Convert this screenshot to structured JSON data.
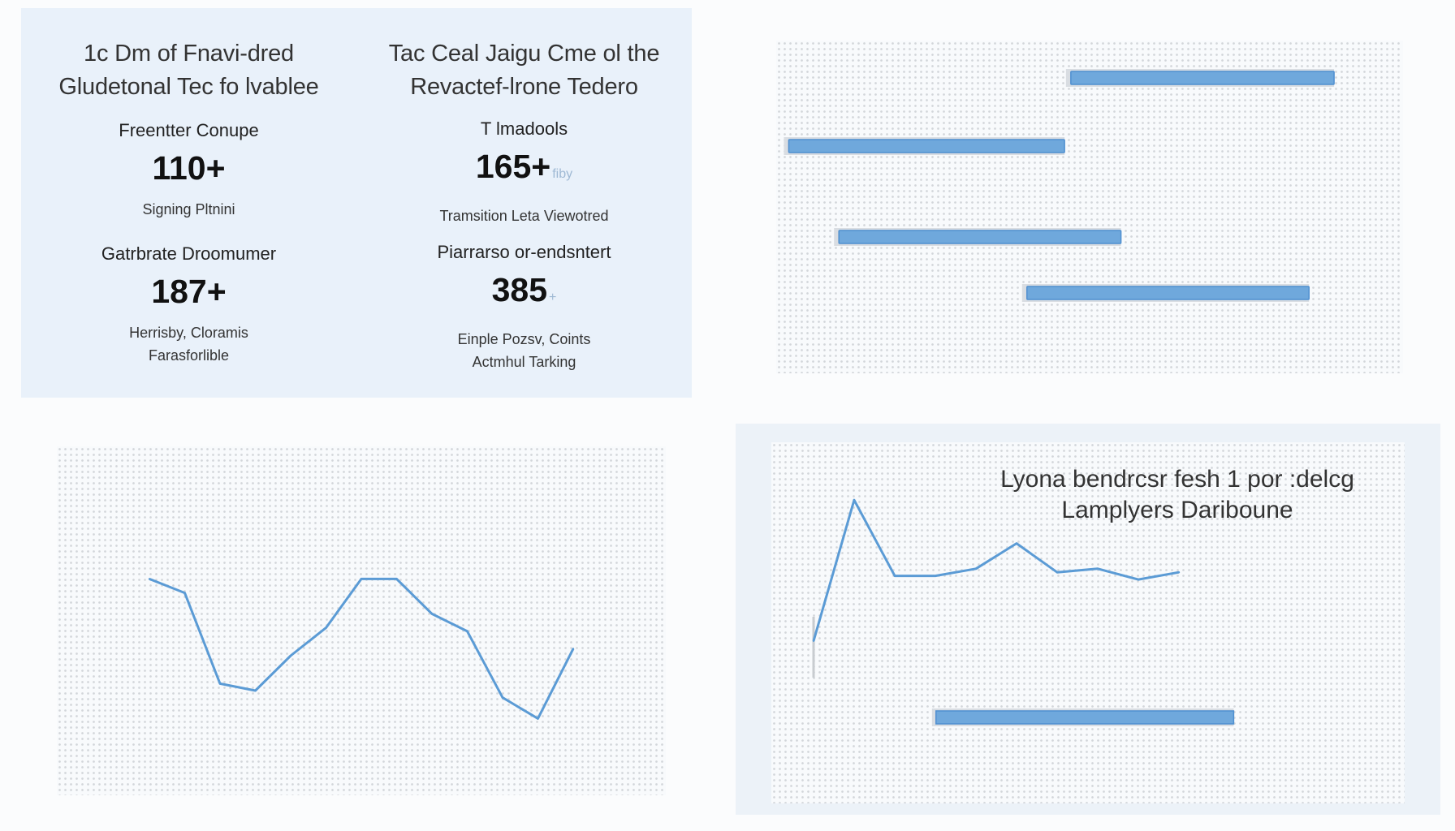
{
  "stats_panel": {
    "titles": [
      [
        "1c Dm of Fnavi-dred",
        "Gludetonal Tec fo lvablee"
      ],
      [
        "Tac Ceal Jaigu Cme ol the",
        "Revactef-lrone Tedero"
      ]
    ],
    "stats": [
      {
        "label": "Freentter Conupe",
        "value": "110+",
        "suffix": "",
        "desc": [
          "Signing Pltnini"
        ]
      },
      {
        "label": "T lmadools",
        "value": "165+",
        "suffix": "fiby",
        "desc": [
          "Tramsition Leta Viewotred"
        ]
      },
      {
        "label": "Gatrbrate Droomumer",
        "value": "187+",
        "suffix": "",
        "desc": [
          "Herrisby, Cloramis",
          "Farasforlible"
        ]
      },
      {
        "label": "Piarrarso or-endsntert",
        "value": "385",
        "suffix": "+",
        "desc": [
          "Einple Pozsv, Coints",
          "Actmhul Tarking"
        ]
      }
    ]
  },
  "chart_data": [
    {
      "type": "bar",
      "orientation": "horizontal-range",
      "bars": [
        {
          "start": 0.47,
          "end": 0.89
        },
        {
          "start": 0.02,
          "end": 0.46
        },
        {
          "start": 0.1,
          "end": 0.55
        },
        {
          "start": 0.4,
          "end": 0.85
        }
      ],
      "xlim": [
        0,
        1
      ],
      "grid": true,
      "colors": {
        "bar": "#6fa8dc",
        "bar_border": "#4f8fd0"
      }
    },
    {
      "type": "line",
      "x": [
        0,
        1,
        2,
        3,
        4,
        5,
        6,
        7,
        8,
        9,
        10,
        11,
        12
      ],
      "values": [
        0.62,
        0.58,
        0.32,
        0.3,
        0.4,
        0.48,
        0.62,
        0.62,
        0.52,
        0.47,
        0.28,
        0.22,
        0.42
      ],
      "ylim": [
        0,
        1
      ],
      "grid": true,
      "colors": {
        "line": "#5b9bd5"
      }
    },
    {
      "type": "line",
      "title": [
        "Lyona bendrcsr fesh 1 por :delcg",
        "Lamplyers Dariboune"
      ],
      "x": [
        0,
        1,
        2,
        3,
        4,
        5,
        6,
        7,
        8,
        9
      ],
      "values": [
        0.45,
        0.84,
        0.63,
        0.63,
        0.65,
        0.72,
        0.64,
        0.65,
        0.62,
        0.64
      ],
      "ylim": [
        0,
        1
      ],
      "grid": true,
      "extra_bar": {
        "start": 0.26,
        "end": 0.73
      },
      "colors": {
        "line": "#5b9bd5",
        "bar": "#6fa8dc"
      }
    }
  ]
}
